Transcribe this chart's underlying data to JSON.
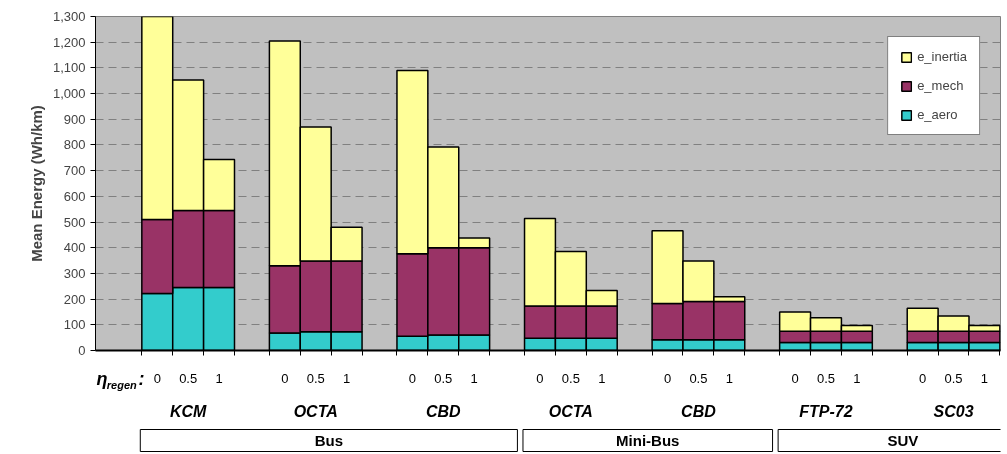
{
  "chart_data": {
    "type": "bar",
    "stacked": true,
    "ylabel": "Mean Energy (Wh/km)",
    "categories": [
      "0",
      "0.5",
      "1",
      "0",
      "0.5",
      "1",
      "0",
      "0.5",
      "1",
      "0",
      "0.5",
      "1",
      "0",
      "0.5",
      "1",
      "0",
      "0.5",
      "1",
      "0",
      "0.5",
      "1"
    ],
    "series": [
      {
        "name": "e_aero",
        "color": "#33cccc",
        "values": [
          222,
          245,
          245,
          68,
          73,
          73,
          55,
          60,
          60,
          48,
          48,
          48,
          42,
          42,
          42,
          31,
          31,
          31,
          31,
          31,
          31
        ]
      },
      {
        "name": "e_mech",
        "color": "#993366",
        "values": [
          288,
          300,
          300,
          262,
          275,
          275,
          322,
          340,
          340,
          125,
          125,
          125,
          141,
          149,
          149,
          44,
          44,
          44,
          44,
          44,
          44
        ]
      },
      {
        "name": "e_inertia",
        "color": "#ffff99",
        "values": [
          790,
          508,
          198,
          875,
          522,
          132,
          713,
          392,
          38,
          341,
          212,
          61,
          283,
          157,
          18,
          75,
          52,
          22,
          89,
          59,
          22
        ]
      }
    ],
    "ylim": [
      0,
      1300
    ],
    "yticks": [
      0,
      100,
      200,
      300,
      400,
      500,
      600,
      700,
      800,
      900,
      {
        "value": 1000,
        "label": "1,000"
      },
      {
        "value": 1100,
        "label": "1,100"
      },
      {
        "value": 1200,
        "label": "1,200"
      },
      {
        "value": 1300,
        "label": "1,300"
      }
    ],
    "grid": "y",
    "legend": "top right",
    "annotations": [
      "η$_{regen}$:",
      "KCM",
      "OCTA",
      "CBD",
      "OCTA",
      "CBD",
      "FTP-72",
      "SC03",
      "Bus",
      "Mini-Bus",
      "SUV"
    ]
  }
}
